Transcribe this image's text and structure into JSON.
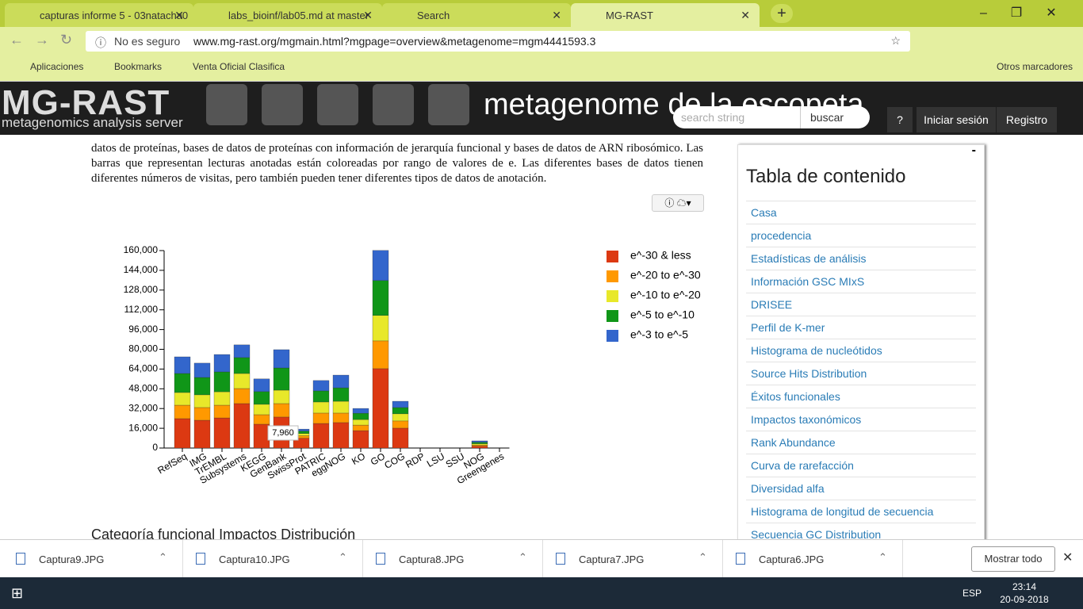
{
  "browser": {
    "tabs": [
      "capturas informe 5 - 03natacha0",
      "labs_bioinf/lab05.md at master",
      "Search",
      "MG-RAST"
    ],
    "security": "No es seguro",
    "url": "www.mg-rast.org/mgmain.html?mgpage=overview&metagenome=mgm4441593.3",
    "bookmarks": [
      "Aplicaciones",
      "Bookmarks",
      "Venta Oficial Clasifica"
    ],
    "other_bookmarks": "Otros marcadores"
  },
  "header": {
    "logo": "MG-RAST",
    "logo_subtitle": "metagenomics analysis server",
    "title": "metagenome de la escopeta",
    "search_placeholder": "search string",
    "search_button": "buscar",
    "help": "?",
    "login": "Iniciar sesión",
    "register": "Registro"
  },
  "content": {
    "paragraph": "datos de proteínas, bases de datos de proteínas con información de jerarquía funcional y bases de datos de ARN ribosómico. Las barras que representan lecturas anotadas están coloreadas por rango de valores de e. Las diferentes bases de datos tienen diferentes números de visitas, pero también pueden tener diferentes tipos de datos de anotación.",
    "next_heading": "Categoría funcional Impactos Distribución"
  },
  "chart_data": {
    "type": "bar",
    "stacked": true,
    "categories": [
      "RefSeq",
      "IMG",
      "TrEMBL",
      "Subsystems",
      "KEGG",
      "GenBank",
      "SwissProt",
      "PATRIC",
      "eggNOG",
      "KO",
      "GO",
      "COG",
      "RDP",
      "LSU",
      "SSU",
      "NOG",
      "Greengenes"
    ],
    "series": [
      {
        "name": "e^-30 & less",
        "color": "#dc3912",
        "values": [
          23800,
          22500,
          24400,
          36000,
          19300,
          25100,
          7960,
          19900,
          20600,
          14100,
          64300,
          16100,
          0,
          0,
          0,
          1500,
          0
        ]
      },
      {
        "name": "e^-20 to e^-30",
        "color": "#ff9900",
        "values": [
          10900,
          10300,
          10300,
          12200,
          7700,
          10900,
          2000,
          8400,
          7700,
          4500,
          22500,
          5800,
          0,
          0,
          0,
          1000,
          0
        ]
      },
      {
        "name": "e^-10 to e^-20",
        "color": "#e8e82a",
        "values": [
          10300,
          10300,
          10900,
          12200,
          8400,
          10900,
          1800,
          9000,
          9600,
          4500,
          20600,
          5800,
          0,
          0,
          0,
          1000,
          0
        ]
      },
      {
        "name": "e^-5 to e^-10",
        "color": "#109618",
        "values": [
          15400,
          14100,
          16100,
          12900,
          10300,
          18000,
          2000,
          9000,
          10900,
          5100,
          28300,
          5100,
          0,
          0,
          0,
          1200,
          0
        ]
      },
      {
        "name": "e^-3 to e^-5",
        "color": "#3366cc",
        "values": [
          13500,
          11600,
          14100,
          10300,
          10300,
          14800,
          1600,
          8400,
          10300,
          3900,
          24400,
          5100,
          0,
          0,
          0,
          1100,
          0
        ]
      }
    ],
    "ylim": [
      0,
      160000
    ],
    "yticks": [
      0,
      {
        "value": 16000,
        "label": "16,000"
      },
      {
        "value": 32000,
        "label": "32,000"
      },
      {
        "value": 48000,
        "label": "48,000"
      },
      {
        "value": 64000,
        "label": "64,000"
      },
      {
        "value": 80000,
        "label": "80,000"
      },
      {
        "value": 96000,
        "label": "96,000"
      },
      {
        "value": 112000,
        "label": "112,000"
      },
      {
        "value": 128000,
        "label": "128,000"
      },
      {
        "value": 144000,
        "label": "144,000"
      },
      {
        "value": 160000,
        "label": "160,000"
      }
    ],
    "tooltip": "7,960",
    "legend": "right"
  },
  "toc": {
    "title": "Tabla de contenido",
    "items": [
      "Casa",
      "procedencia",
      "Estadísticas de análisis",
      "Información GSC MIxS",
      "DRISEE",
      "Perfil de K-mer",
      "Histograma de nucleótidos",
      "Source Hits Distribution",
      "Éxitos funcionales",
      "Impactos taxonómicos",
      "Rank Abundance",
      "Curva de rarefacción",
      "Diversidad alfa",
      "Histograma de longitud de secuencia",
      "Secuencia GC Distribution"
    ]
  },
  "downloads": {
    "files": [
      "Captura9.JPG",
      "Captura10.JPG",
      "Captura8.JPG",
      "Captura7.JPG",
      "Captura6.JPG"
    ],
    "show_all": "Mostrar todo"
  },
  "taskbar": {
    "language": "ESP",
    "time": "23:14",
    "date": "20-09-2018"
  }
}
